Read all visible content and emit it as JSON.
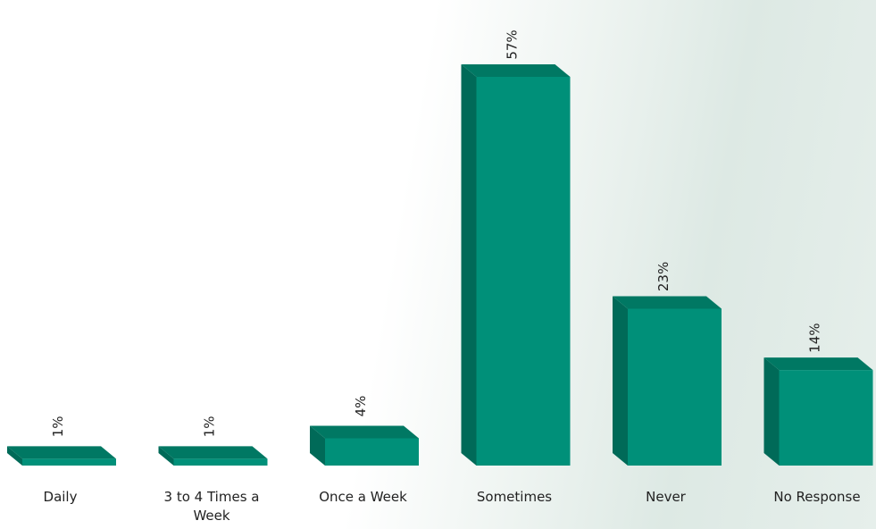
{
  "chart_data": {
    "type": "bar3d",
    "categories": [
      "Daily",
      "3 to 4 Times a Week",
      "Once a Week",
      "Sometimes",
      "Never",
      "No Response"
    ],
    "values": [
      1,
      1,
      4,
      57,
      23,
      14
    ],
    "value_labels": [
      "1%",
      "1%",
      "4%",
      "57%",
      "23%",
      "14%"
    ],
    "color": "#009079"
  }
}
